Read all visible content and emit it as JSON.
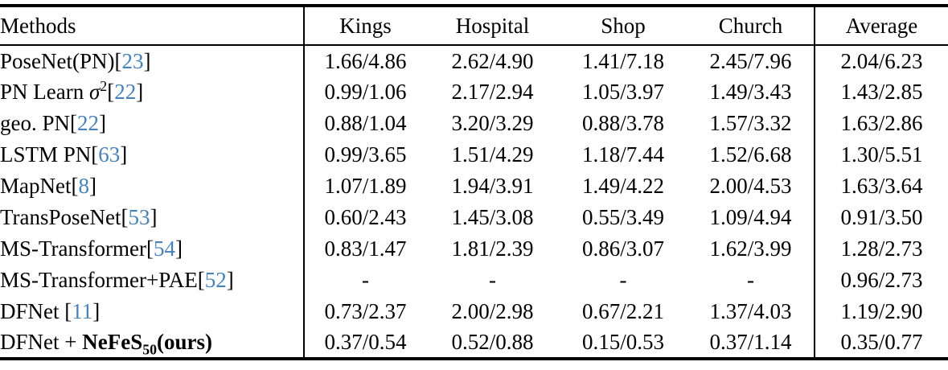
{
  "colors": {
    "citation": "#4880b8",
    "text": "#000000",
    "background": "#ffffff"
  },
  "table": {
    "headers": {
      "methods": "Methods",
      "kings": "Kings",
      "hospital": "Hospital",
      "shop": "Shop",
      "church": "Church",
      "average": "Average"
    },
    "rows": [
      {
        "name_pre": "PoseNet(PN)",
        "cite_open": "[",
        "cite": "23",
        "cite_close": "]",
        "cells": [
          "1.66/4.86",
          "2.62/4.90",
          "1.41/7.18",
          "2.45/7.96",
          "2.04/6.23"
        ]
      },
      {
        "name_pre": "PN Learn ",
        "sigma": "σ",
        "sigma_sup": "2",
        "cite_open": "[",
        "cite": "22",
        "cite_close": "]",
        "cells": [
          "0.99/1.06",
          "2.17/2.94",
          "1.05/3.97",
          "1.49/3.43",
          "1.43/2.85"
        ]
      },
      {
        "name_pre": "geo. PN",
        "cite_open": "[",
        "cite": "22",
        "cite_close": "]",
        "cells": [
          "0.88/1.04",
          "3.20/3.29",
          "0.88/3.78",
          "1.57/3.32",
          "1.63/2.86"
        ]
      },
      {
        "name_pre": "LSTM PN",
        "cite_open": "[",
        "cite": "63",
        "cite_close": "]",
        "cells": [
          "0.99/3.65",
          "1.51/4.29",
          "1.18/7.44",
          "1.52/6.68",
          "1.30/5.51"
        ]
      },
      {
        "name_pre": "MapNet",
        "cite_open": "[",
        "cite": "8",
        "cite_close": "]",
        "cells": [
          "1.07/1.89",
          "1.94/3.91",
          "1.49/4.22",
          "2.00/4.53",
          "1.63/3.64"
        ]
      },
      {
        "name_pre": "TransPoseNet",
        "cite_open": "[",
        "cite": "53",
        "cite_close": "]",
        "cells": [
          "0.60/2.43",
          "1.45/3.08",
          "0.55/3.49",
          "1.09/4.94",
          "0.91/3.50"
        ]
      },
      {
        "name_pre": "MS-Transformer",
        "cite_open": "[",
        "cite": "54",
        "cite_close": "]",
        "cells": [
          "0.83/1.47",
          "1.81/2.39",
          "0.86/3.07",
          "1.62/3.99",
          "1.28/2.73"
        ]
      },
      {
        "name_pre": "MS-Transformer+PAE",
        "cite_open": "[",
        "cite": "52",
        "cite_close": "]",
        "cells": [
          "-",
          "-",
          "-",
          "-",
          "0.96/2.73"
        ]
      },
      {
        "name_pre": "DFNet ",
        "cite_open": "[",
        "cite": "11",
        "cite_close": "]",
        "cells": [
          "0.73/2.37",
          "2.00/2.98",
          "0.67/2.21",
          "1.37/4.03",
          "1.19/2.90"
        ]
      },
      {
        "name_pre": "DFNet + ",
        "bold_name": "NeFeS",
        "bold_sub": "50",
        "bold_tail": "(ours)",
        "cells": [
          "0.37/0.54",
          "0.52/0.88",
          "0.15/0.53",
          "0.37/1.14",
          "0.35/0.77"
        ]
      }
    ]
  }
}
